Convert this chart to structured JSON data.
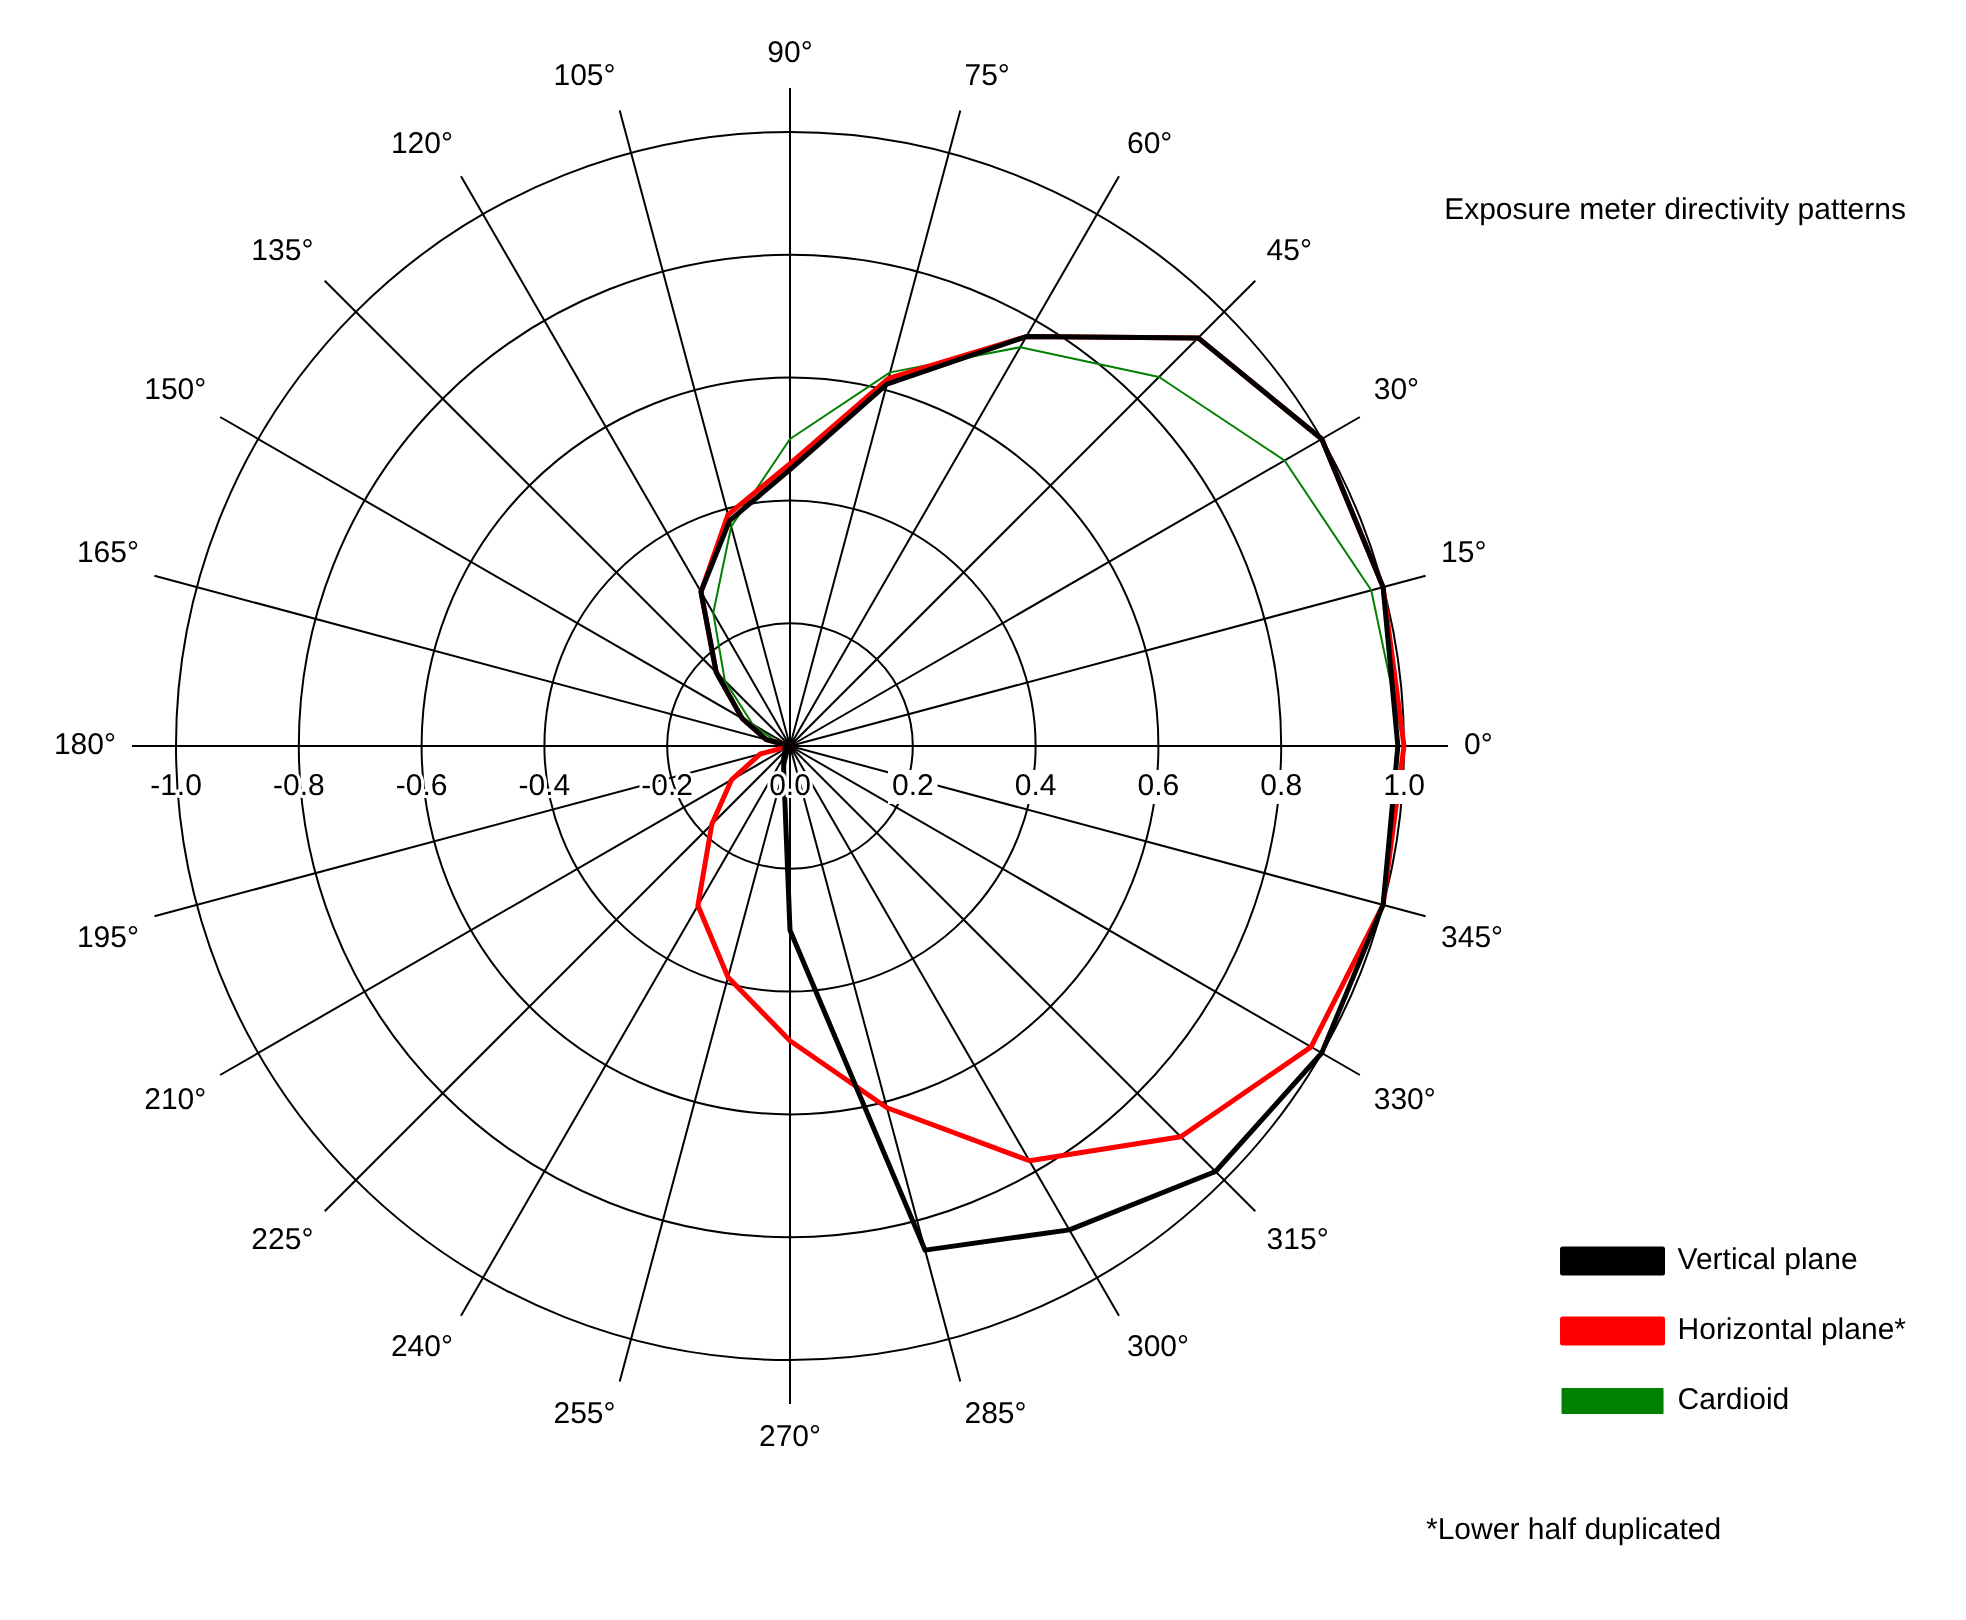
{
  "chart_data": {
    "type": "radar",
    "title": "Exposure meter directivity patterns",
    "categories": [
      "90°",
      "75°",
      "60°",
      "45°",
      "30°",
      "15°",
      "0°",
      "345°",
      "330°",
      "315°",
      "300°",
      "285°",
      "270°",
      "255°",
      "240°",
      "225°",
      "210°",
      "195°",
      "180°",
      "165°",
      "150°",
      "135°",
      "120°",
      "105°"
    ],
    "series": [
      {
        "name": "Vertical plane",
        "color": "#000000",
        "values": [
          0.45,
          0.61,
          0.77,
          0.94,
          1.0,
          1.0,
          0.99,
          1.0,
          1.0,
          0.98,
          0.91,
          0.85,
          0.3,
          0.04,
          0.02,
          0.01,
          0.01,
          0,
          0,
          0.04,
          0.09,
          0.17,
          0.29,
          0.38
        ]
      },
      {
        "name": "Horizontal plane*",
        "color": "#ff0000",
        "values": [
          0.46,
          0.62,
          0.77,
          0.94,
          1.0,
          1.0,
          1.0,
          1.0,
          0.98,
          0.9,
          0.78,
          0.61,
          0.48,
          0.39,
          0.3,
          0.18,
          0.11,
          0.05,
          0,
          0.04,
          0.09,
          0.17,
          0.29,
          0.39
        ]
      },
      {
        "name": "Cardioid",
        "color": "#008000",
        "values": [
          0.5,
          0.63,
          0.75,
          0.85,
          0.93,
          0.98,
          1.0,
          null,
          null,
          null,
          null,
          null,
          null,
          null,
          null,
          null,
          null,
          null,
          0,
          0.02,
          0.07,
          0.15,
          0.25,
          0.37
        ]
      }
    ],
    "ylim": [
      0,
      1
    ],
    "yticks": [
      {
        "value": 0,
        "label": "0.0"
      },
      {
        "value": 0.2,
        "label": "0.2"
      },
      {
        "value": 0.4,
        "label": "0.4"
      },
      {
        "value": 0.6,
        "label": "0.6"
      },
      {
        "value": 0.8,
        "label": "0.8"
      },
      {
        "value": 1.0,
        "label": "1.0"
      }
    ],
    "annotations": [
      "-0.2",
      "-0.4",
      "-0.6",
      "-0.8",
      "-1.0",
      "*Lower half duplicated"
    ],
    "grid": true,
    "legend": "bottom right",
    "marker": "none",
    "line_style": "solid"
  }
}
